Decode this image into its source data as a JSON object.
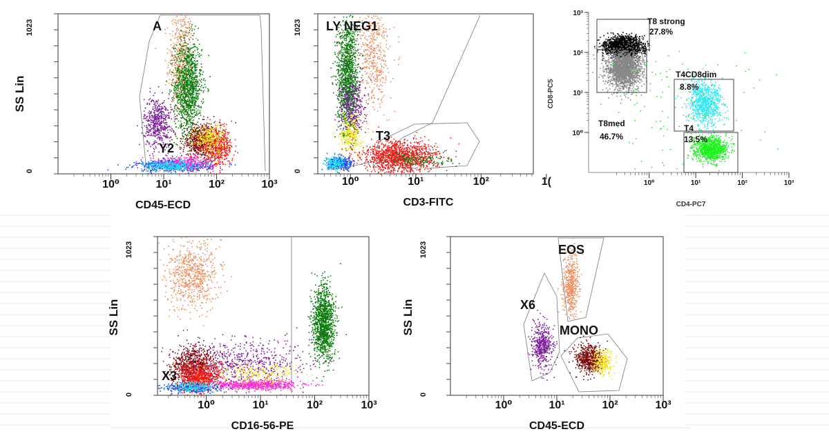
{
  "colors": {
    "granulocyte": "#0a7a0a",
    "eosinophil": "#f08a5a",
    "monocyte": "#7a0a0a",
    "lymph_red": "#f21c1c",
    "purple": "#7a1c9a",
    "magenta": "#ff2ad8",
    "yellow": "#f2e21c",
    "blue": "#1c4af2",
    "cyan": "#1ce2f2",
    "t8_strong": "#000000",
    "t8_dim": "#888888",
    "t4_green": "#1cf21c",
    "t4cd8dim_cyan": "#2ce8f2",
    "gate_line": "#555555"
  },
  "chart_data": [
    {
      "id": "plot1",
      "type": "scatter",
      "xlabel": "CD45-ECD",
      "ylabel": "SS Lin",
      "x_ticks": [
        "10⁰",
        "10¹",
        "10²",
        "10³"
      ],
      "y_ticks": [
        "0",
        "1023"
      ],
      "xlim": [
        -1,
        3
      ],
      "ylim": [
        0,
        1023
      ],
      "xscale": "log",
      "gates": [
        {
          "label": "A",
          "points": [
            [
              0.4,
              0
            ],
            [
              0.55,
              700
            ],
            [
              0.6,
              1023
            ],
            [
              2.9,
              1023
            ],
            [
              2.9,
              0
            ]
          ]
        },
        {
          "label": "Y2",
          "points": []
        }
      ],
      "clusters": [
        {
          "color": "eosinophil",
          "x": 1.32,
          "y": 720,
          "sx": 0.12,
          "sy": 180,
          "n": 500
        },
        {
          "color": "granulocyte",
          "x": 1.45,
          "y": 560,
          "sx": 0.13,
          "sy": 150,
          "n": 1200
        },
        {
          "color": "purple",
          "x": 0.88,
          "y": 330,
          "sx": 0.13,
          "sy": 80,
          "n": 500
        },
        {
          "color": "monocyte",
          "x": 1.7,
          "y": 210,
          "sx": 0.18,
          "sy": 55,
          "n": 600
        },
        {
          "color": "lymph_red",
          "x": 2.0,
          "y": 170,
          "sx": 0.15,
          "sy": 60,
          "n": 500
        },
        {
          "color": "yellow",
          "x": 1.85,
          "y": 230,
          "sx": 0.15,
          "sy": 45,
          "n": 250
        },
        {
          "color": "blue",
          "x": 1.2,
          "y": 55,
          "sx": 0.35,
          "sy": 18,
          "n": 600
        },
        {
          "color": "magenta",
          "x": 1.35,
          "y": 75,
          "sx": 0.3,
          "sy": 20,
          "n": 300
        },
        {
          "color": "cyan",
          "x": 1.1,
          "y": 55,
          "sx": 0.25,
          "sy": 15,
          "n": 250
        }
      ]
    },
    {
      "id": "plot2",
      "type": "scatter",
      "xlabel": "CD3-FITC",
      "ylabel": "",
      "x_ticks": [
        "10⁰",
        "10¹",
        "10²",
        "1("
      ],
      "y_ticks": [
        "0",
        "1023"
      ],
      "xlim": [
        -0.5,
        2.8
      ],
      "ylim": [
        0,
        1023
      ],
      "xscale": "log",
      "gates": [
        {
          "label": "LY NEG1",
          "points": []
        },
        {
          "label": "T3",
          "points": []
        }
      ],
      "clusters": [
        {
          "color": "granulocyte",
          "x": -0.05,
          "y": 620,
          "sx": 0.08,
          "sy": 190,
          "n": 1300
        },
        {
          "color": "eosinophil",
          "x": 0.35,
          "y": 760,
          "sx": 0.12,
          "sy": 170,
          "n": 450
        },
        {
          "color": "purple",
          "x": 0.02,
          "y": 430,
          "sx": 0.1,
          "sy": 90,
          "n": 350
        },
        {
          "color": "yellow",
          "x": 0.0,
          "y": 260,
          "sx": 0.08,
          "sy": 60,
          "n": 250
        },
        {
          "color": "lymph_red",
          "x": 0.75,
          "y": 110,
          "sx": 0.28,
          "sy": 50,
          "n": 1300
        },
        {
          "color": "blue",
          "x": -0.15,
          "y": 70,
          "sx": 0.1,
          "sy": 20,
          "n": 300
        },
        {
          "color": "cyan",
          "x": -0.25,
          "y": 75,
          "sx": 0.08,
          "sy": 20,
          "n": 150
        },
        {
          "color": "granulocyte",
          "x": 1.05,
          "y": 90,
          "sx": 0.25,
          "sy": 25,
          "n": 150
        }
      ]
    },
    {
      "id": "plot3",
      "type": "scatter",
      "xlabel": "CD4-PC7",
      "ylabel": "CD8-PC5",
      "x_ticks": [
        "10⁰",
        "10¹",
        "10²",
        "10³"
      ],
      "y_ticks": [
        "10⁰",
        "10¹",
        "10²",
        "10³"
      ],
      "xlim": [
        -1.3,
        3.0
      ],
      "ylim": [
        -1.0,
        3.0
      ],
      "xscale": "log",
      "yscale": "log",
      "gates": [
        {
          "label": "T8 strong",
          "value": "27.8%"
        },
        {
          "label": "T4CD8dim",
          "value": "8.8%"
        },
        {
          "label": "T8med",
          "value": "46.7%"
        },
        {
          "label": "T4",
          "value": "13.5%"
        }
      ],
      "clusters": [
        {
          "color": "t8_strong",
          "x": -0.55,
          "y": 2.15,
          "sx": 0.18,
          "sy": 0.12,
          "n": 2200
        },
        {
          "color": "t8_dim",
          "x": -0.55,
          "y": 1.6,
          "sx": 0.18,
          "sy": 0.25,
          "n": 2000
        },
        {
          "color": "t4cd8dim_cyan",
          "x": 1.2,
          "y": 0.75,
          "sx": 0.18,
          "sy": 0.28,
          "n": 800
        },
        {
          "color": "t4_green",
          "x": 1.3,
          "y": -0.4,
          "sx": 0.18,
          "sy": 0.15,
          "n": 900
        },
        {
          "color": "t4_green",
          "x": 0.6,
          "y": 0.5,
          "sx": 0.9,
          "sy": 0.9,
          "n": 120
        }
      ]
    },
    {
      "id": "plot4",
      "type": "scatter",
      "xlabel": "CD16-56-PE",
      "ylabel": "SS Lin",
      "x_ticks": [
        "10⁰",
        "10¹",
        "10²",
        "10³"
      ],
      "y_ticks": [
        "0",
        "1023"
      ],
      "xlim": [
        -0.9,
        3.0
      ],
      "ylim": [
        0,
        1023
      ],
      "xscale": "log",
      "gates": [
        {
          "label": "X3",
          "points": []
        }
      ],
      "clusters": [
        {
          "color": "eosinophil",
          "x": -0.25,
          "y": 780,
          "sx": 0.25,
          "sy": 110,
          "n": 650
        },
        {
          "color": "granulocyte",
          "x": 2.15,
          "y": 470,
          "sx": 0.1,
          "sy": 120,
          "n": 1200
        },
        {
          "color": "purple",
          "x": 0.6,
          "y": 210,
          "sx": 0.6,
          "sy": 80,
          "n": 650
        },
        {
          "color": "monocyte",
          "x": -0.25,
          "y": 180,
          "sx": 0.2,
          "sy": 70,
          "n": 700
        },
        {
          "color": "lymph_red",
          "x": -0.15,
          "y": 120,
          "sx": 0.2,
          "sy": 50,
          "n": 700
        },
        {
          "color": "magenta",
          "x": 0.9,
          "y": 70,
          "sx": 0.4,
          "sy": 15,
          "n": 650
        },
        {
          "color": "yellow",
          "x": 0.95,
          "y": 140,
          "sx": 0.4,
          "sy": 40,
          "n": 200
        },
        {
          "color": "blue",
          "x": -0.3,
          "y": 50,
          "sx": 0.25,
          "sy": 15,
          "n": 250
        },
        {
          "color": "cyan",
          "x": -0.25,
          "y": 60,
          "sx": 0.2,
          "sy": 15,
          "n": 150
        }
      ]
    },
    {
      "id": "plot5",
      "type": "scatter",
      "xlabel": "CD45-ECD",
      "ylabel": "SS Lin",
      "x_ticks": [
        "10⁰",
        "10¹",
        "10²",
        "10³"
      ],
      "y_ticks": [
        "0",
        "1023"
      ],
      "xlim": [
        -1,
        3
      ],
      "ylim": [
        0,
        1023
      ],
      "xscale": "log",
      "gates": [
        {
          "label": "EOS",
          "points": []
        },
        {
          "label": "X6",
          "points": []
        },
        {
          "label": "MONO",
          "points": []
        }
      ],
      "clusters": [
        {
          "color": "eosinophil",
          "x": 1.25,
          "y": 720,
          "sx": 0.08,
          "sy": 100,
          "n": 450
        },
        {
          "color": "purple",
          "x": 0.72,
          "y": 320,
          "sx": 0.1,
          "sy": 70,
          "n": 450
        },
        {
          "color": "monocyte",
          "x": 1.6,
          "y": 240,
          "sx": 0.12,
          "sy": 45,
          "n": 600
        },
        {
          "color": "yellow",
          "x": 1.85,
          "y": 220,
          "sx": 0.1,
          "sy": 40,
          "n": 250
        }
      ]
    }
  ]
}
